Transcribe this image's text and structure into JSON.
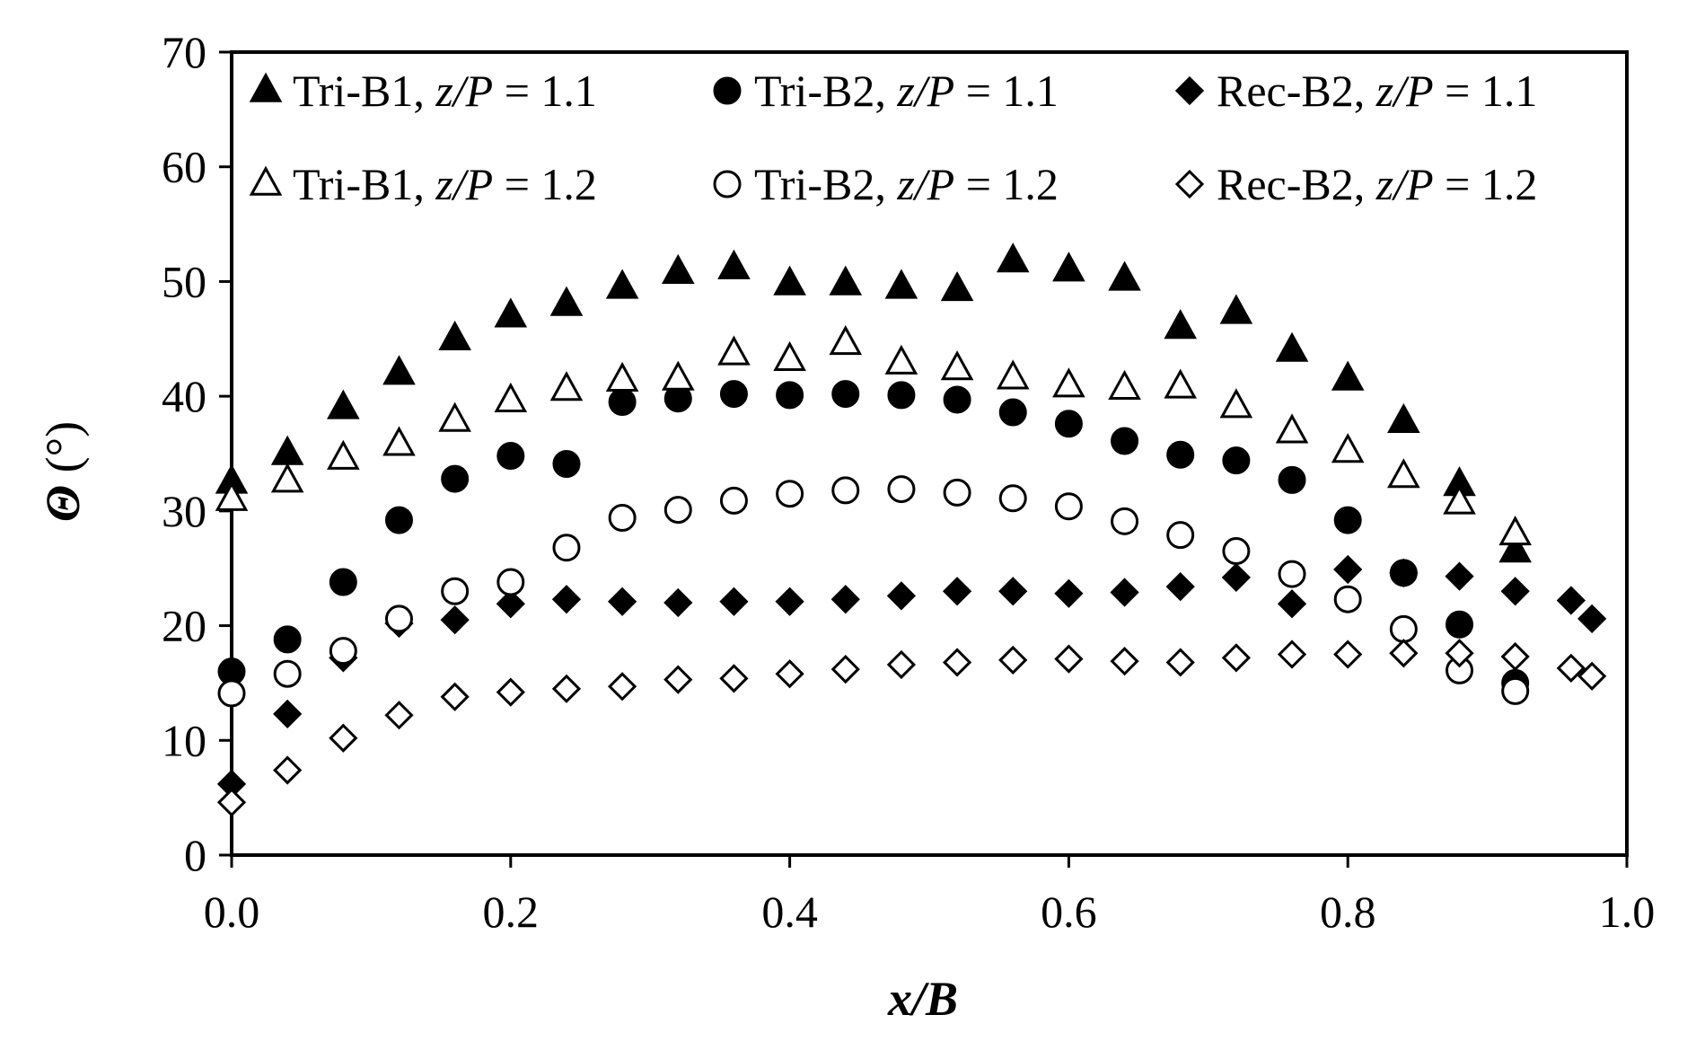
{
  "chart_data": {
    "type": "scatter",
    "xlabel": {
      "var": "x",
      "sep": "/",
      "den": "B"
    },
    "ylabel": {
      "sym": "Θ",
      "unit": " (°)"
    },
    "xlim": [
      0.0,
      1.0
    ],
    "ylim": [
      0,
      70
    ],
    "xticks": [
      "0.0",
      "0.2",
      "0.4",
      "0.6",
      "0.8",
      "1.0"
    ],
    "yticks": [
      "0",
      "10",
      "20",
      "30",
      "40",
      "50",
      "60",
      "70"
    ],
    "grid": false,
    "legend_position": "top",
    "series": [
      {
        "name": "Tri-B1, z/P = 1.1",
        "legend": {
          "prefix": "Tri-B1, ",
          "var": "z/P",
          "suffix": " = 1.1"
        },
        "marker": "triangle",
        "filled": true,
        "points": [
          [
            0.0,
            32.5
          ],
          [
            0.04,
            35
          ],
          [
            0.08,
            39
          ],
          [
            0.12,
            42
          ],
          [
            0.16,
            45
          ],
          [
            0.2,
            47
          ],
          [
            0.24,
            48
          ],
          [
            0.28,
            49.5
          ],
          [
            0.32,
            50.8
          ],
          [
            0.36,
            51.2
          ],
          [
            0.4,
            49.8
          ],
          [
            0.44,
            49.8
          ],
          [
            0.48,
            49.5
          ],
          [
            0.52,
            49.3
          ],
          [
            0.56,
            51.8
          ],
          [
            0.6,
            51
          ],
          [
            0.64,
            50.2
          ],
          [
            0.68,
            46
          ],
          [
            0.72,
            47.3
          ],
          [
            0.76,
            44
          ],
          [
            0.8,
            41.5
          ],
          [
            0.84,
            37.8
          ],
          [
            0.88,
            32.3
          ],
          [
            0.92,
            26.5
          ]
        ]
      },
      {
        "name": "Tri-B2, z/P = 1.1",
        "legend": {
          "prefix": "Tri-B2, ",
          "var": "z/P",
          "suffix": " = 1.1"
        },
        "marker": "circle",
        "filled": true,
        "points": [
          [
            0.0,
            16
          ],
          [
            0.04,
            18.8
          ],
          [
            0.08,
            23.8
          ],
          [
            0.12,
            29.2
          ],
          [
            0.16,
            32.8
          ],
          [
            0.2,
            34.8
          ],
          [
            0.24,
            34.1
          ],
          [
            0.28,
            39.5
          ],
          [
            0.32,
            39.8
          ],
          [
            0.36,
            40.2
          ],
          [
            0.4,
            40.1
          ],
          [
            0.44,
            40.2
          ],
          [
            0.48,
            40.1
          ],
          [
            0.52,
            39.7
          ],
          [
            0.56,
            38.6
          ],
          [
            0.6,
            37.6
          ],
          [
            0.64,
            36.1
          ],
          [
            0.68,
            34.9
          ],
          [
            0.72,
            34.4
          ],
          [
            0.76,
            32.7
          ],
          [
            0.8,
            29.2
          ],
          [
            0.84,
            24.6
          ],
          [
            0.88,
            20.1
          ],
          [
            0.92,
            15
          ]
        ]
      },
      {
        "name": "Rec-B2, z/P = 1.1",
        "legend": {
          "prefix": "Rec-B2, ",
          "var": "z/P",
          "suffix": " = 1.1"
        },
        "marker": "diamond",
        "filled": true,
        "points": [
          [
            0.0,
            6.2
          ],
          [
            0.04,
            12.3
          ],
          [
            0.08,
            17.2
          ],
          [
            0.12,
            20.2
          ],
          [
            0.16,
            20.5
          ],
          [
            0.2,
            21.9
          ],
          [
            0.24,
            22.3
          ],
          [
            0.28,
            22.1
          ],
          [
            0.32,
            22.0
          ],
          [
            0.36,
            22.1
          ],
          [
            0.4,
            22.1
          ],
          [
            0.44,
            22.3
          ],
          [
            0.48,
            22.6
          ],
          [
            0.52,
            23.0
          ],
          [
            0.56,
            23.0
          ],
          [
            0.6,
            22.8
          ],
          [
            0.64,
            22.9
          ],
          [
            0.68,
            23.4
          ],
          [
            0.72,
            24.2
          ],
          [
            0.76,
            21.9
          ],
          [
            0.8,
            24.9
          ],
          [
            0.84,
            24.6
          ],
          [
            0.88,
            24.3
          ],
          [
            0.92,
            23.0
          ],
          [
            0.96,
            22.2
          ],
          [
            0.975,
            20.6
          ]
        ]
      },
      {
        "name": "Tri-B1, z/P = 1.2",
        "legend": {
          "prefix": "Tri-B1, ",
          "var": "z/P",
          "suffix": " = 1.2"
        },
        "marker": "triangle",
        "filled": false,
        "points": [
          [
            0.0,
            31
          ],
          [
            0.04,
            32.6
          ],
          [
            0.08,
            34.6
          ],
          [
            0.12,
            35.8
          ],
          [
            0.16,
            37.9
          ],
          [
            0.2,
            39.6
          ],
          [
            0.24,
            40.6
          ],
          [
            0.28,
            41.4
          ],
          [
            0.32,
            41.5
          ],
          [
            0.36,
            43.7
          ],
          [
            0.4,
            43.2
          ],
          [
            0.44,
            44.6
          ],
          [
            0.48,
            42.9
          ],
          [
            0.52,
            42.4
          ],
          [
            0.56,
            41.6
          ],
          [
            0.6,
            40.9
          ],
          [
            0.64,
            40.7
          ],
          [
            0.68,
            40.8
          ],
          [
            0.72,
            39.1
          ],
          [
            0.76,
            36.9
          ],
          [
            0.8,
            35.2
          ],
          [
            0.84,
            33
          ],
          [
            0.88,
            30.7
          ],
          [
            0.92,
            28
          ]
        ]
      },
      {
        "name": "Tri-B2, z/P = 1.2",
        "legend": {
          "prefix": "Tri-B2, ",
          "var": "z/P",
          "suffix": " = 1.2"
        },
        "marker": "circle",
        "filled": false,
        "points": [
          [
            0.0,
            14.1
          ],
          [
            0.04,
            15.8
          ],
          [
            0.08,
            17.8
          ],
          [
            0.12,
            20.6
          ],
          [
            0.16,
            23.0
          ],
          [
            0.2,
            23.8
          ],
          [
            0.24,
            26.8
          ],
          [
            0.28,
            29.4
          ],
          [
            0.32,
            30.1
          ],
          [
            0.36,
            30.9
          ],
          [
            0.4,
            31.5
          ],
          [
            0.44,
            31.8
          ],
          [
            0.48,
            31.9
          ],
          [
            0.52,
            31.6
          ],
          [
            0.56,
            31.1
          ],
          [
            0.6,
            30.4
          ],
          [
            0.64,
            29.1
          ],
          [
            0.68,
            27.9
          ],
          [
            0.72,
            26.5
          ],
          [
            0.76,
            24.5
          ],
          [
            0.8,
            22.3
          ],
          [
            0.84,
            19.7
          ],
          [
            0.88,
            16.1
          ],
          [
            0.92,
            14.3
          ]
        ]
      },
      {
        "name": "Rec-B2, z/P = 1.2",
        "legend": {
          "prefix": "Rec-B2, ",
          "var": "z/P",
          "suffix": " = 1.2"
        },
        "marker": "diamond",
        "filled": false,
        "points": [
          [
            0.0,
            4.6
          ],
          [
            0.04,
            7.4
          ],
          [
            0.08,
            10.2
          ],
          [
            0.12,
            12.2
          ],
          [
            0.16,
            13.8
          ],
          [
            0.2,
            14.2
          ],
          [
            0.24,
            14.5
          ],
          [
            0.28,
            14.7
          ],
          [
            0.32,
            15.3
          ],
          [
            0.36,
            15.4
          ],
          [
            0.4,
            15.8
          ],
          [
            0.44,
            16.2
          ],
          [
            0.48,
            16.6
          ],
          [
            0.52,
            16.8
          ],
          [
            0.56,
            17.0
          ],
          [
            0.6,
            17.1
          ],
          [
            0.64,
            16.9
          ],
          [
            0.68,
            16.8
          ],
          [
            0.72,
            17.2
          ],
          [
            0.76,
            17.5
          ],
          [
            0.8,
            17.5
          ],
          [
            0.84,
            17.6
          ],
          [
            0.88,
            17.6
          ],
          [
            0.92,
            17.3
          ],
          [
            0.96,
            16.3
          ],
          [
            0.975,
            15.6
          ]
        ]
      }
    ]
  }
}
